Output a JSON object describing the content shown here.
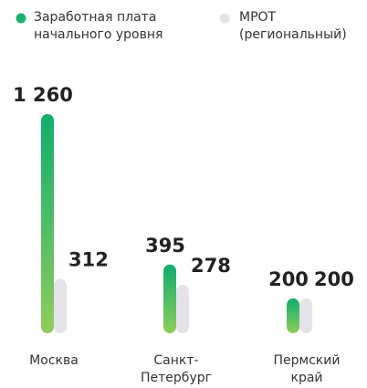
{
  "chart_data": {
    "type": "bar",
    "categories": [
      "Москва",
      "Санкт-Петербург",
      "Пермский край"
    ],
    "series": [
      {
        "name": "Заработная плата начального уровня",
        "color": "#1db36f",
        "values": [
          1260,
          395,
          200
        ],
        "value_labels": [
          "1 260",
          "395",
          "200"
        ]
      },
      {
        "name": "МРОТ (региональный)",
        "color": "#e3e3e8",
        "values": [
          312,
          278,
          200
        ],
        "value_labels": [
          "312",
          "278",
          "200"
        ]
      }
    ]
  }
}
